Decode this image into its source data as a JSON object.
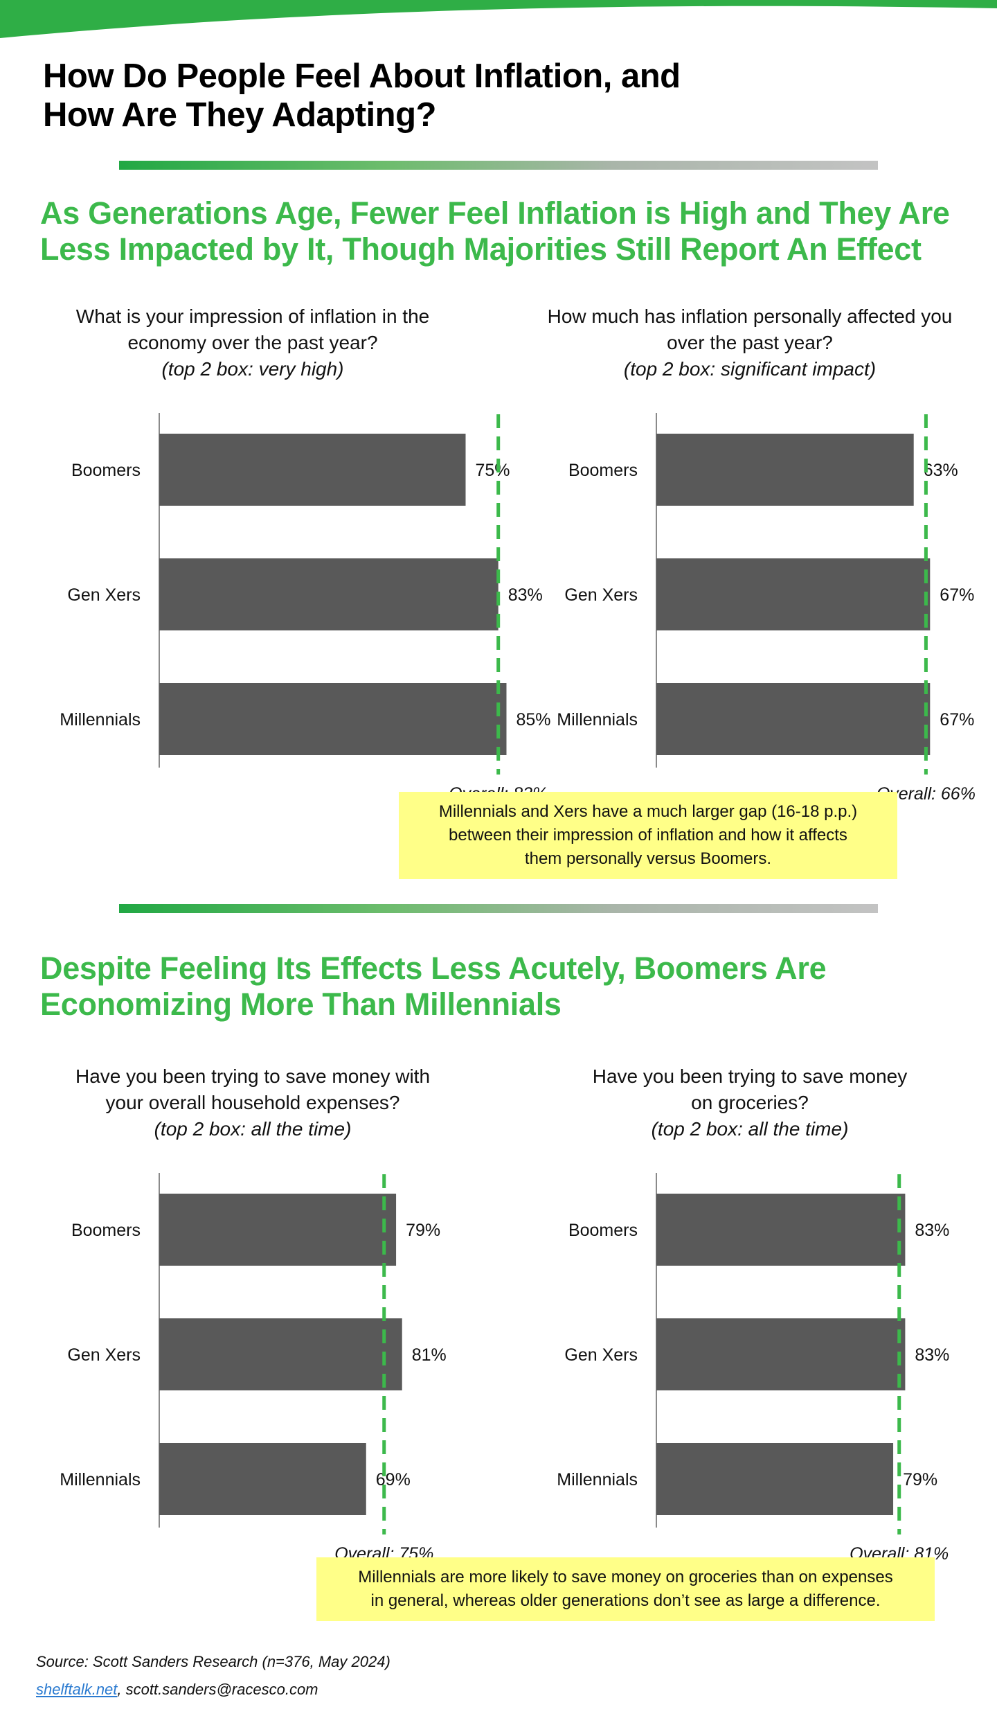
{
  "main_title": [
    "How Do People Feel About Inflation, and",
    "How Are They Adapting?"
  ],
  "colors": {
    "accent_green": "#3cb94b",
    "bar": "#595959",
    "overall_line": "#3cb94b",
    "callout_bg": "#ffff88",
    "link": "#2a7ad0"
  },
  "section1": {
    "title": [
      "As Generations Age, Fewer Feel Inflation is High and They Are",
      "Less Impacted by It, Though Majorities Still Report An Effect"
    ],
    "callout": [
      "Millennials  and Xers have a much larger gap (16-18 p.p.)",
      "between their impression of inflation and how it affects",
      "them personally versus Boomers."
    ]
  },
  "section2": {
    "title": [
      "Despite Feeling Its Effects Less Acutely, Boomers Are",
      "Economizing More Than Millennials"
    ],
    "callout": [
      "Millennials  are more likely to save money on groceries than on expenses",
      "in general, whereas older generations don’t see as large a difference."
    ]
  },
  "source": "Source: Scott Sanders Research (n=376, May 2024)",
  "link_text": "shelftalk.net",
  "email_text": ", scott.sanders@racesco.com",
  "chart_data": [
    {
      "type": "bar",
      "question": [
        "What is your impression of inflation in the",
        "economy over the past year?"
      ],
      "subtitle": "(top 2 box: very high)",
      "categories": [
        "Boomers",
        "Gen Xers",
        "Millennials"
      ],
      "values": [
        75,
        83,
        85
      ],
      "value_labels": [
        "75%",
        "83%",
        "85%"
      ],
      "overall": 83,
      "overall_label": "Overall:  83%"
    },
    {
      "type": "bar",
      "question": [
        "How much has inflation personally affected you",
        "over the past year?"
      ],
      "subtitle": "(top 2 box: significant impact)",
      "categories": [
        "Boomers",
        "Gen Xers",
        "Millennials"
      ],
      "values": [
        63,
        67,
        67
      ],
      "value_labels": [
        "63%",
        "67%",
        "67%"
      ],
      "overall": 66,
      "overall_label": "Overall:  66%"
    },
    {
      "type": "bar",
      "question": [
        "Have you been trying to save money with",
        "your overall household expenses?"
      ],
      "subtitle": "(top 2 box: all the time)",
      "categories": [
        "Boomers",
        "Gen Xers",
        "Millennials"
      ],
      "values": [
        79,
        81,
        69
      ],
      "value_labels": [
        "79%",
        "81%",
        "69%"
      ],
      "overall": 75,
      "overall_label": "Overall:  75%"
    },
    {
      "type": "bar",
      "question": [
        "Have you been trying to save money",
        "on groceries?"
      ],
      "subtitle": "(top 2 box: all the time)",
      "categories": [
        "Boomers",
        "Gen Xers",
        "Millennials"
      ],
      "values": [
        83,
        83,
        79
      ],
      "value_labels": [
        "83%",
        "83%",
        "79%"
      ],
      "overall": 81,
      "overall_label": "Overall:  81%"
    }
  ]
}
